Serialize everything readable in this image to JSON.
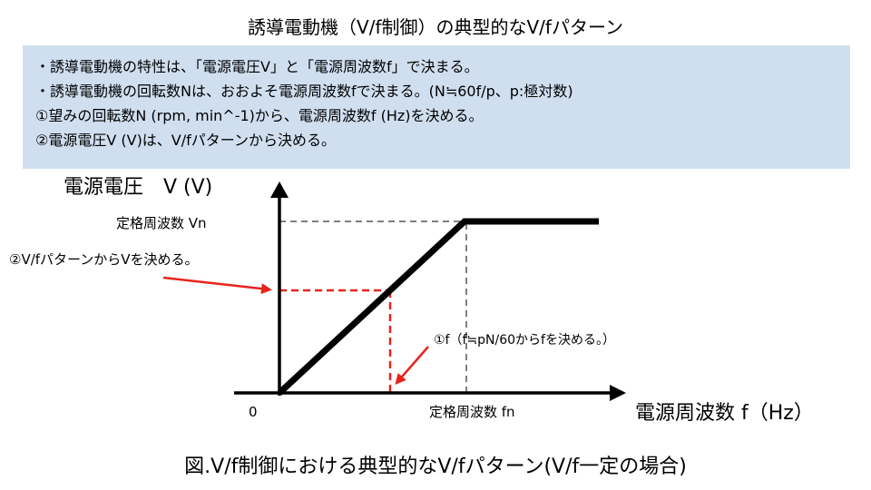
{
  "title": "誘導電動機（V/f制御）の典型的なV/fパターン",
  "info_lines": [
    "・誘導電動機の特性は、「電源電圧V」と「電源周波数f」で決まる。",
    "・誘導電動機の回転数Nは、おおよそ電源周波数fで決まる。(N≒60f/p、p:極対数)",
    "①望みの回転数N (rpm, min^-1)から、電源周波数f (Hz)を決める。",
    "②電源電圧V (V)は、V/fパターンから決める。"
  ],
  "diagram": {
    "y_axis_label": "電源電圧　V (V)",
    "x_axis_label": "電源周波数 f（Hz）",
    "origin_label": "0",
    "vn_label": "定格周波数 Vn",
    "fn_label": "定格周波数 fn",
    "annotation_v": "②V/fパターンからVを決める。",
    "annotation_f": "①f（f≒pN/60からfを決める。）",
    "colors": {
      "pattern_line": "#000000",
      "guide_line": "#7f7f7f",
      "annotation": "#e8231c"
    }
  },
  "caption": "図.V/f制御における典型的なV/fパターン(V/f一定の場合)"
}
